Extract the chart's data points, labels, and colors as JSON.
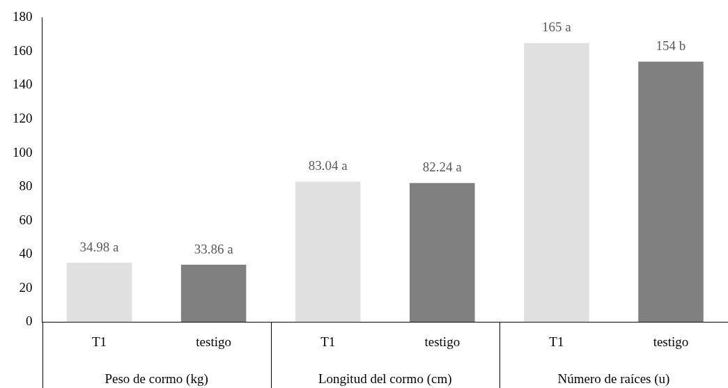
{
  "chart_data": {
    "type": "bar",
    "categories": [
      "T1",
      "testigo",
      "T1",
      "testigo",
      "T1",
      "testigo"
    ],
    "values": [
      34.98,
      33.86,
      83.04,
      82.24,
      165,
      154
    ],
    "colors": [
      "#e0e0e0",
      "#808080",
      "#e0e0e0",
      "#808080",
      "#e0e0e0",
      "#808080"
    ],
    "value_labels": [
      "34.98 a",
      "33.86 a",
      "83.04 a",
      "82.24 a",
      "165 a",
      "154 b"
    ],
    "annotations": [
      "Peso de cormo (kg)",
      "Longitud del cormo (cm)",
      "Número de raíces (u)"
    ],
    "ylim": [
      0,
      180
    ],
    "yticks": [
      0,
      20,
      40,
      60,
      80,
      100,
      120,
      140,
      160,
      180
    ],
    "grid": false,
    "legend": false
  }
}
